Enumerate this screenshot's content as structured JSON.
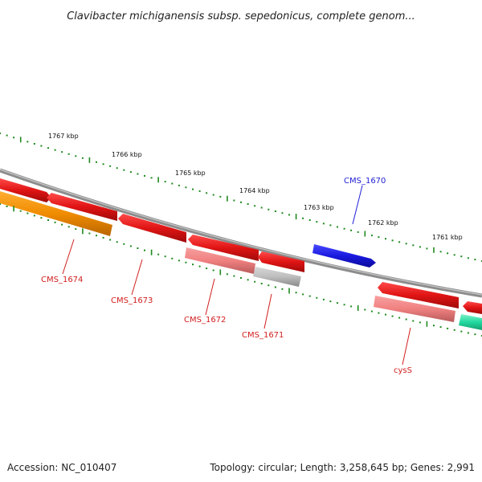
{
  "title": "Clavibacter michiganensis subsp. sepedonicus, complete genom...",
  "footer": {
    "accession": "Accession: NC_010407",
    "summary": "Topology: circular; Length: 3,258,645 bp; Genes: 2,991"
  },
  "colors": {
    "backbone": "#8c8c8c",
    "tick": "#1f8a1f",
    "forward_label": "#1f1fd6",
    "reverse_label": "#d21e1e"
  },
  "kbp_labels": [
    "1767 kbp",
    "1766 kbp",
    "1765 kbp",
    "1764 kbp",
    "1763 kbp",
    "1762 kbp",
    "1761 kbp"
  ],
  "genes": [
    {
      "label": "CMS_1670",
      "strand": "forward",
      "color": "#1a1ae0"
    },
    {
      "label": "CMS_1671",
      "strand": "reverse",
      "color": "#e01414"
    },
    {
      "label": "CMS_1672",
      "strand": "reverse",
      "color": "#e01414"
    },
    {
      "label": "CMS_1673",
      "strand": "reverse",
      "color": "#e01414"
    },
    {
      "label": "CMS_1674",
      "strand": "reverse",
      "color": "#e01414"
    },
    {
      "label": "cysS",
      "strand": "reverse",
      "color": "#e01414"
    }
  ],
  "feature_colors": {
    "cds": "#e01414",
    "rrna_like": "#f08080",
    "misc": "#b4b4b4",
    "orange": "#f08c00",
    "green": "#22d9a0"
  }
}
